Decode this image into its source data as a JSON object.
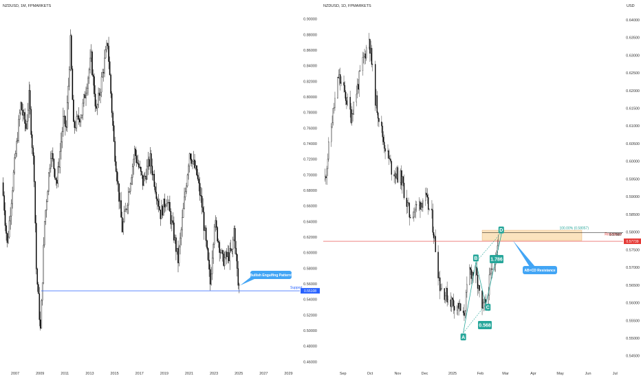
{
  "chart_data": [
    {
      "type": "candlestick",
      "title": "NZDUSD, 1M, FPMARKETS",
      "price_axis_label": "",
      "x_ticks": [
        "2007",
        "2009",
        "2011",
        "2013",
        "2015",
        "2017",
        "2019",
        "2021",
        "2023",
        "2025",
        "2027",
        "2029"
      ],
      "y_ticks": [
        "0.90000",
        "0.88000",
        "0.86000",
        "0.84000",
        "0.82000",
        "0.80000",
        "0.78000",
        "0.76000",
        "0.74000",
        "0.72000",
        "0.70000",
        "0.68000",
        "0.66000",
        "0.64000",
        "0.62000",
        "0.60000",
        "0.58000",
        "0.56000",
        "0.54000",
        "0.52000",
        "0.50000",
        "0.48000",
        "0.46000"
      ],
      "ylim": [
        0.455,
        0.905
      ],
      "x_range": [
        "2006-01",
        "2029-12"
      ],
      "closes": [
        {
          "date": "2006-01",
          "value": 0.69
        },
        {
          "date": "2006-06",
          "value": 0.61
        },
        {
          "date": "2006-12",
          "value": 0.7
        },
        {
          "date": "2007-07",
          "value": 0.79
        },
        {
          "date": "2007-12",
          "value": 0.76
        },
        {
          "date": "2008-03",
          "value": 0.8
        },
        {
          "date": "2008-08",
          "value": 0.7
        },
        {
          "date": "2008-10",
          "value": 0.58
        },
        {
          "date": "2009-02",
          "value": 0.5
        },
        {
          "date": "2009-06",
          "value": 0.64
        },
        {
          "date": "2009-12",
          "value": 0.73
        },
        {
          "date": "2010-06",
          "value": 0.69
        },
        {
          "date": "2010-12",
          "value": 0.77
        },
        {
          "date": "2011-03",
          "value": 0.76
        },
        {
          "date": "2011-07",
          "value": 0.87
        },
        {
          "date": "2011-10",
          "value": 0.76
        },
        {
          "date": "2012-06",
          "value": 0.78
        },
        {
          "date": "2013-03",
          "value": 0.85
        },
        {
          "date": "2013-08",
          "value": 0.78
        },
        {
          "date": "2014-07",
          "value": 0.87
        },
        {
          "date": "2015-01",
          "value": 0.74
        },
        {
          "date": "2015-09",
          "value": 0.63
        },
        {
          "date": "2016-01",
          "value": 0.66
        },
        {
          "date": "2016-09",
          "value": 0.73
        },
        {
          "date": "2017-05",
          "value": 0.69
        },
        {
          "date": "2017-12",
          "value": 0.72
        },
        {
          "date": "2018-10",
          "value": 0.65
        },
        {
          "date": "2019-04",
          "value": 0.67
        },
        {
          "date": "2019-10",
          "value": 0.63
        },
        {
          "date": "2020-03",
          "value": 0.59
        },
        {
          "date": "2021-02",
          "value": 0.73
        },
        {
          "date": "2021-09",
          "value": 0.7
        },
        {
          "date": "2022-02",
          "value": 0.66
        },
        {
          "date": "2022-10",
          "value": 0.56
        },
        {
          "date": "2023-02",
          "value": 0.64
        },
        {
          "date": "2023-10",
          "value": 0.59
        },
        {
          "date": "2024-07",
          "value": 0.6
        },
        {
          "date": "2024-09",
          "value": 0.63
        },
        {
          "date": "2025-01",
          "value": 0.558
        }
      ],
      "support_level": 0.55108,
      "support_label": "Support",
      "price_tag": "0.55108",
      "annotation": "Bullish Engulfing Pattern!"
    },
    {
      "type": "candlestick",
      "title": "NZDUSD, 1D, FPMARKETS",
      "price_axis_label": "USD",
      "x_ticks": [
        "Sep",
        "Oct",
        "Nov",
        "Dec",
        "2025",
        "Feb",
        "Mar",
        "Apr",
        "May",
        "Jun",
        "Jul"
      ],
      "y_ticks": [
        "0.64000",
        "0.63500",
        "0.63000",
        "0.62500",
        "0.62000",
        "0.61500",
        "0.61000",
        "0.60500",
        "0.60000",
        "0.59500",
        "0.59000",
        "0.58500",
        "0.58000",
        "0.57500",
        "0.57000",
        "0.56500",
        "0.56000",
        "0.55500",
        "0.55000",
        "0.54500"
      ],
      "ylim": [
        0.543,
        0.6425
      ],
      "x_range": [
        "2024-08-10",
        "2025-07-10"
      ],
      "closes": [
        {
          "date": "2024-08-12",
          "value": 0.595
        },
        {
          "date": "2024-08-20",
          "value": 0.612
        },
        {
          "date": "2024-08-27",
          "value": 0.624
        },
        {
          "date": "2024-09-03",
          "value": 0.619
        },
        {
          "date": "2024-09-10",
          "value": 0.613
        },
        {
          "date": "2024-09-17",
          "value": 0.621
        },
        {
          "date": "2024-09-24",
          "value": 0.629
        },
        {
          "date": "2024-09-30",
          "value": 0.635
        },
        {
          "date": "2024-10-07",
          "value": 0.618
        },
        {
          "date": "2024-10-16",
          "value": 0.606
        },
        {
          "date": "2024-10-25",
          "value": 0.598
        },
        {
          "date": "2024-11-05",
          "value": 0.595
        },
        {
          "date": "2024-11-14",
          "value": 0.585
        },
        {
          "date": "2024-11-22",
          "value": 0.587
        },
        {
          "date": "2024-12-01",
          "value": 0.59
        },
        {
          "date": "2024-12-09",
          "value": 0.584
        },
        {
          "date": "2024-12-18",
          "value": 0.565
        },
        {
          "date": "2024-12-28",
          "value": 0.561
        },
        {
          "date": "2025-01-08",
          "value": 0.559
        },
        {
          "date": "2025-01-13",
          "value": 0.5555
        },
        {
          "date": "2025-01-20",
          "value": 0.569
        },
        {
          "date": "2025-01-27",
          "value": 0.568
        },
        {
          "date": "2025-02-03",
          "value": 0.5575
        },
        {
          "date": "2025-02-07",
          "value": 0.56
        },
        {
          "date": "2025-02-14",
          "value": 0.57
        },
        {
          "date": "2025-02-21",
          "value": 0.577
        }
      ],
      "zone": {
        "from": 0.5776,
        "to": 0.5805
      },
      "fib_label": "100.00% (0.58057)",
      "resistance_label": "Resistance",
      "resistance_level": "0.57987",
      "current_price_tag": "0.57739",
      "current_price": 0.57739,
      "pattern_points": [
        {
          "label": "A",
          "date": "2025-01-13",
          "value": 0.5515
        },
        {
          "label": "B",
          "date": "2025-01-27",
          "value": 0.5715
        },
        {
          "label": "C",
          "date": "2025-02-07",
          "value": 0.5595
        },
        {
          "label": "D",
          "date": "2025-02-25",
          "value": 0.58
        }
      ],
      "ratios": [
        "0.568",
        "1.786"
      ],
      "annotation": "AB=CD Resistance"
    }
  ]
}
